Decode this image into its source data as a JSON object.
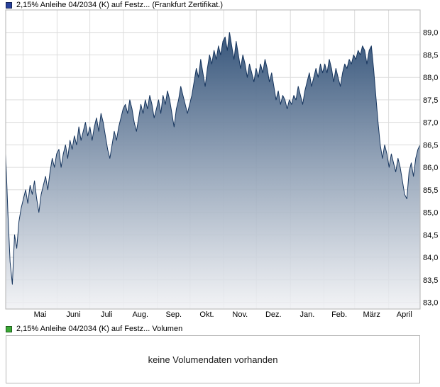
{
  "legend_top": {
    "label": "2,15% Anleihe 04/2034 (K) auf Festz... (Frankfurt Zertifikat.)",
    "color": "#27409b"
  },
  "legend_bottom": {
    "label": "2,15% Anleihe 04/2034 (K) auf Festz... Volumen",
    "color": "#3aa935"
  },
  "volume_panel": {
    "message": "keine Volumendaten vorhanden"
  },
  "chart_data": {
    "type": "area",
    "title": "2,15% Anleihe 04/2034 (K) auf Festz... (Frankfurt Zertifikat.)",
    "xlabel": "",
    "ylabel": "",
    "grid": true,
    "legend_position": "top-left",
    "x_tick_labels": [
      "Mai",
      "Juni",
      "Juli",
      "Aug.",
      "Sep.",
      "Okt.",
      "Nov.",
      "Dez.",
      "Jan.",
      "Feb.",
      "März",
      "April"
    ],
    "month_fracs": [
      0.042,
      0.124,
      0.203,
      0.284,
      0.366,
      0.445,
      0.526,
      0.605,
      0.687,
      0.768,
      0.842,
      0.924
    ],
    "y_ticks": [
      83.0,
      83.5,
      84.0,
      84.5,
      85.0,
      85.5,
      86.0,
      86.5,
      87.0,
      87.5,
      88.0,
      88.5,
      89.0
    ],
    "y_tick_labels": [
      "83,0",
      "83,5",
      "84,0",
      "84,5",
      "85,0",
      "85,5",
      "86,0",
      "86,5",
      "87,0",
      "87,5",
      "88,0",
      "88,5",
      "89,0"
    ],
    "ylim": [
      82.85,
      89.5
    ],
    "line_color": "#16355e",
    "fill_top": "#24466f",
    "fill_bottom": "#f0f1f4",
    "grid_color": "#dcdcdc",
    "border_color": "#b3b3b3",
    "values": [
      86.3,
      85.0,
      83.9,
      83.4,
      84.5,
      84.2,
      84.8,
      85.1,
      85.3,
      85.5,
      85.2,
      85.6,
      85.4,
      85.7,
      85.3,
      85.0,
      85.4,
      85.6,
      85.8,
      85.5,
      85.9,
      86.2,
      86.0,
      86.3,
      86.4,
      86.0,
      86.3,
      86.5,
      86.2,
      86.6,
      86.4,
      86.7,
      86.5,
      86.9,
      86.6,
      86.8,
      87.0,
      86.7,
      86.9,
      86.6,
      86.9,
      87.1,
      86.8,
      87.2,
      87.0,
      86.7,
      86.4,
      86.2,
      86.5,
      86.8,
      86.6,
      86.9,
      87.1,
      87.3,
      87.4,
      87.2,
      87.5,
      87.3,
      87.0,
      86.8,
      87.1,
      87.4,
      87.2,
      87.5,
      87.3,
      87.6,
      87.4,
      87.1,
      87.3,
      87.5,
      87.2,
      87.6,
      87.4,
      87.7,
      87.5,
      87.2,
      86.9,
      87.3,
      87.5,
      87.8,
      87.6,
      87.4,
      87.2,
      87.4,
      87.6,
      87.9,
      88.2,
      88.0,
      88.4,
      88.1,
      87.8,
      88.2,
      88.5,
      88.3,
      88.6,
      88.4,
      88.7,
      88.5,
      88.8,
      88.9,
      88.6,
      89.0,
      88.7,
      88.4,
      88.8,
      88.5,
      88.2,
      88.5,
      88.3,
      88.0,
      88.3,
      88.1,
      87.9,
      88.2,
      88.0,
      88.3,
      88.1,
      88.4,
      88.2,
      87.9,
      88.1,
      87.8,
      87.5,
      87.7,
      87.4,
      87.6,
      87.5,
      87.3,
      87.5,
      87.4,
      87.6,
      87.5,
      87.8,
      87.6,
      87.4,
      87.7,
      87.9,
      88.1,
      87.8,
      88.0,
      88.2,
      88.0,
      88.3,
      88.1,
      88.3,
      88.1,
      88.4,
      88.2,
      87.9,
      88.2,
      88.0,
      87.8,
      88.1,
      88.3,
      88.2,
      88.4,
      88.3,
      88.5,
      88.4,
      88.6,
      88.5,
      88.7,
      88.6,
      88.3,
      88.6,
      88.7,
      88.2,
      87.6,
      87.0,
      86.5,
      86.2,
      86.5,
      86.3,
      86.0,
      86.3,
      86.1,
      85.9,
      86.2,
      86.0,
      85.7,
      85.4,
      85.3,
      85.9,
      86.1,
      85.8,
      86.2,
      86.4,
      86.5
    ]
  }
}
